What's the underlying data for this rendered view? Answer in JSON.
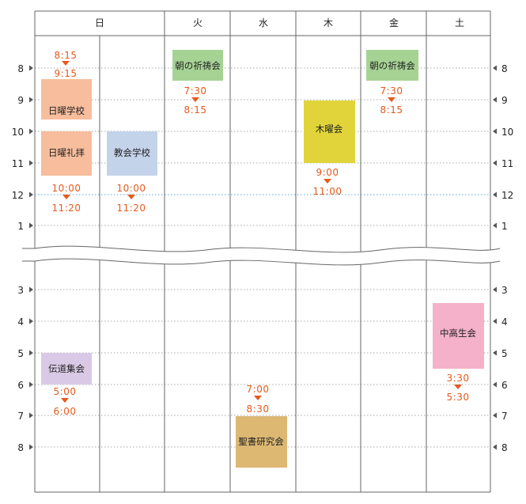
{
  "days": [
    "日",
    "火",
    "水",
    "木",
    "金",
    "土"
  ],
  "hours_left": [
    "8",
    "9",
    "10",
    "11",
    "12",
    "1",
    "3",
    "4",
    "5",
    "6",
    "7",
    "8"
  ],
  "hours_right": [
    "8",
    "9",
    "10",
    "11",
    "12",
    "1",
    "3",
    "4",
    "5",
    "6",
    "7",
    "8"
  ],
  "events": [
    {
      "name": "日曜学校",
      "color": "#f7bd9c"
    },
    {
      "name": "日曜礼拝",
      "color": "#f7bd9c"
    },
    {
      "name": "教会学校",
      "color": "#c3d3ea"
    },
    {
      "name": "伝道集会",
      "color": "#d9c9e6"
    },
    {
      "name": "朝の祈祷会",
      "color": "#a6d394"
    },
    {
      "name": "聖書研究会",
      "color": "#dcb873"
    },
    {
      "name": "木曜会",
      "color": "#e0d43a"
    },
    {
      "name": "朝の祈祷会",
      "color": "#a6d394"
    },
    {
      "name": "中高生会",
      "color": "#f4b1c9"
    }
  ],
  "time_notes": [
    {
      "start": "8:15",
      "end": "9:15"
    },
    {
      "start": "10:00",
      "end": "11:20"
    },
    {
      "start": "10:00",
      "end": "11:20"
    },
    {
      "start": "5:00",
      "end": "6:00"
    },
    {
      "start": "7:30",
      "end": "8:15"
    },
    {
      "start": "7:00",
      "end": "8:30"
    },
    {
      "start": "9:00",
      "end": "11:00"
    },
    {
      "start": "7:30",
      "end": "8:15"
    },
    {
      "start": "3:30",
      "end": "5:30"
    }
  ],
  "colors": {
    "time_text": "#e55a1d",
    "noon_line": "#5aa9c9",
    "grid": "#a8a8a8",
    "border": "#666666"
  }
}
